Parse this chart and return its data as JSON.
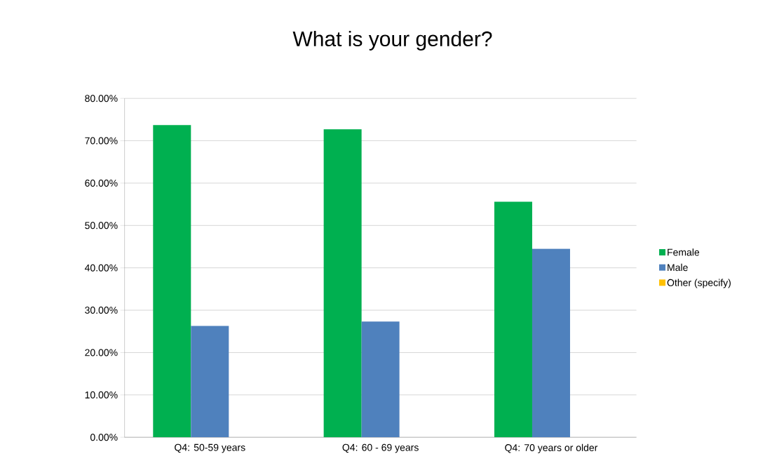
{
  "chart_data": {
    "type": "bar",
    "title": "What is your gender?",
    "categories": [
      "Q4: 50-59 years",
      "Q4: 60 - 69 years",
      "Q4: 70 years or older"
    ],
    "series": [
      {
        "name": "Female",
        "color": "#00b050",
        "values": [
          73.7,
          72.7,
          55.6
        ]
      },
      {
        "name": "Male",
        "color": "#4f81bd",
        "values": [
          26.3,
          27.3,
          44.5
        ]
      },
      {
        "name": "Other (specify)",
        "color": "#ffc000",
        "values": [
          0,
          0,
          0
        ]
      }
    ],
    "ylim": [
      0,
      80
    ],
    "yticks": [
      {
        "value": 0,
        "label": "0.00%"
      },
      {
        "value": 10,
        "label": "10.00%"
      },
      {
        "value": 20,
        "label": "20.00%"
      },
      {
        "value": 30,
        "label": "30.00%"
      },
      {
        "value": 40,
        "label": "40.00%"
      },
      {
        "value": 50,
        "label": "50.00%"
      },
      {
        "value": 60,
        "label": "60.00%"
      },
      {
        "value": 70,
        "label": "70.00%"
      },
      {
        "value": 80,
        "label": "80.00%"
      }
    ],
    "grid": "y",
    "legend": "right"
  }
}
